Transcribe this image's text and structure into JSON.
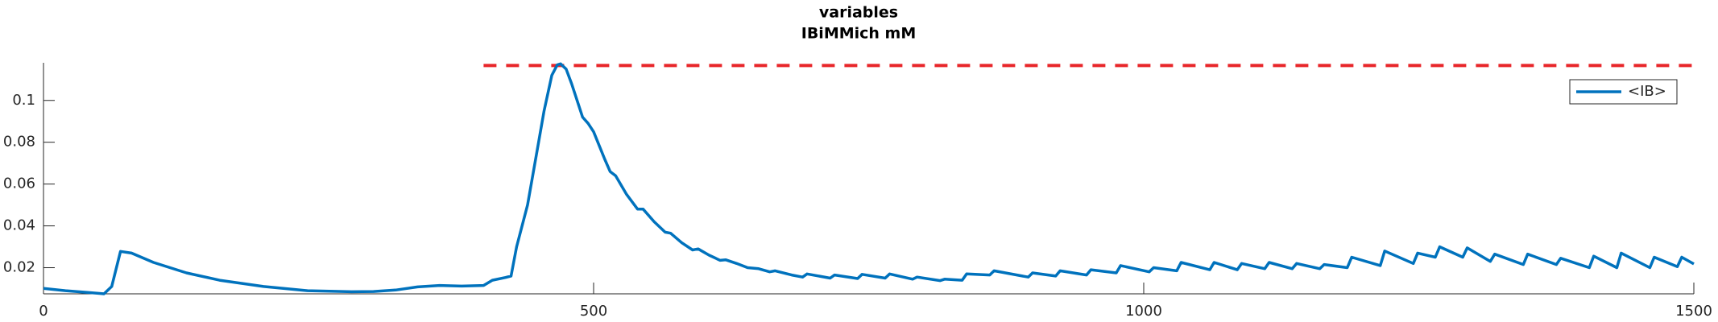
{
  "chart_data": {
    "type": "line",
    "title": "variables",
    "subtitle": "IBiMMich mM",
    "x": [
      0,
      20,
      40,
      55,
      62,
      70,
      80,
      100,
      130,
      160,
      200,
      240,
      280,
      300,
      320,
      340,
      360,
      380,
      400,
      408,
      420,
      425,
      430,
      440,
      450,
      455,
      462,
      467,
      470,
      475,
      480,
      490,
      495,
      500,
      510,
      515,
      520,
      530,
      540,
      545,
      555,
      565,
      570,
      580,
      590,
      595,
      605,
      615,
      620,
      630,
      640,
      650,
      660,
      665,
      680,
      690,
      694,
      715,
      719,
      740,
      744,
      765,
      769,
      790,
      794,
      815,
      819,
      835,
      839,
      860,
      864,
      895,
      899,
      920,
      924,
      948,
      952,
      975,
      979,
      1005,
      1009,
      1030,
      1034,
      1060,
      1064,
      1085,
      1089,
      1110,
      1114,
      1135,
      1139,
      1160,
      1164,
      1185,
      1189,
      1215,
      1219,
      1245,
      1249,
      1265,
      1269,
      1290,
      1294,
      1315,
      1319,
      1345,
      1349,
      1375,
      1379,
      1405,
      1409,
      1430,
      1434,
      1460,
      1464,
      1485,
      1489,
      1500
    ],
    "series": [
      {
        "name": "<IB>",
        "color": "#0072bd",
        "values": [
          0.0101,
          0.009,
          0.0082,
          0.0075,
          0.011,
          0.0278,
          0.027,
          0.0225,
          0.0175,
          0.014,
          0.011,
          0.009,
          0.0085,
          0.0086,
          0.0093,
          0.0108,
          0.0115,
          0.0112,
          0.0115,
          0.014,
          0.0153,
          0.016,
          0.03,
          0.05,
          0.08,
          0.095,
          0.112,
          0.117,
          0.1175,
          0.115,
          0.108,
          0.092,
          0.089,
          0.085,
          0.072,
          0.066,
          0.064,
          0.055,
          0.048,
          0.048,
          0.042,
          0.037,
          0.0365,
          0.032,
          0.0285,
          0.029,
          0.026,
          0.0235,
          0.0238,
          0.022,
          0.02,
          0.0195,
          0.018,
          0.0185,
          0.0165,
          0.0155,
          0.017,
          0.015,
          0.0165,
          0.0148,
          0.0168,
          0.015,
          0.017,
          0.0145,
          0.0155,
          0.0138,
          0.0145,
          0.014,
          0.017,
          0.0165,
          0.0185,
          0.0155,
          0.0175,
          0.016,
          0.0185,
          0.0165,
          0.019,
          0.0175,
          0.021,
          0.018,
          0.02,
          0.0185,
          0.0225,
          0.019,
          0.0225,
          0.019,
          0.022,
          0.0195,
          0.0225,
          0.0195,
          0.022,
          0.0195,
          0.0215,
          0.02,
          0.025,
          0.021,
          0.028,
          0.022,
          0.027,
          0.025,
          0.03,
          0.025,
          0.0295,
          0.023,
          0.0265,
          0.0215,
          0.0265,
          0.0215,
          0.0245,
          0.02,
          0.0255,
          0.02,
          0.027,
          0.02,
          0.025,
          0.0205,
          0.025,
          0.0218
        ]
      }
    ],
    "reference_line": {
      "x": [
        400,
        1500
      ],
      "value": 0.1167,
      "color": "#e8262a"
    },
    "xlim": [
      0,
      1500
    ],
    "xticks": [
      0,
      500,
      1000,
      1500
    ],
    "ylim": [
      0.0075,
      0.118
    ],
    "yticks": [
      0.02,
      0.04,
      0.06,
      0.08,
      0.1
    ],
    "legend": "top-right"
  }
}
